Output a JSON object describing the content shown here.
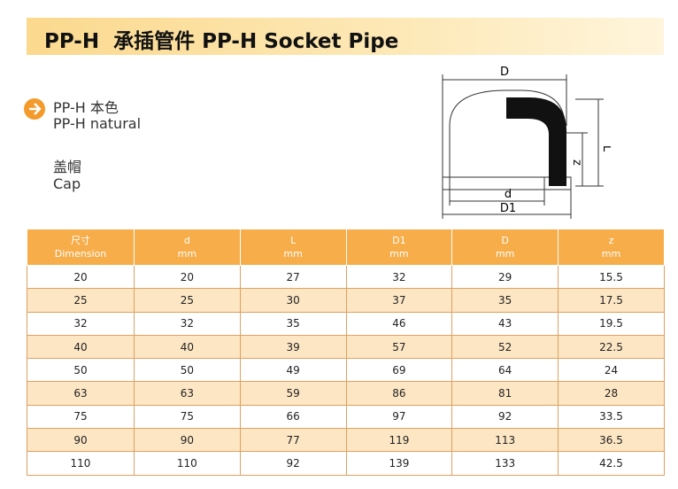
{
  "header": {
    "title": "PP-H  承插管件 PP-H Socket Pipe"
  },
  "product": {
    "material_cn": "PP-H 本色",
    "material_en": "PP-H natural",
    "name_cn": "盖帽",
    "name_en": "Cap"
  },
  "diagram": {
    "labels": [
      "D",
      "L",
      "z",
      "d",
      "D1"
    ]
  },
  "table": {
    "columns": [
      [
        "尺寸",
        "Dimension"
      ],
      [
        "d",
        "mm"
      ],
      [
        "L",
        "mm"
      ],
      [
        "D1",
        "mm"
      ],
      [
        "D",
        "mm"
      ],
      [
        "z",
        "mm"
      ]
    ],
    "rows": [
      [
        20,
        20,
        27,
        32,
        29,
        15.5
      ],
      [
        25,
        25,
        30,
        37,
        35,
        17.5
      ],
      [
        32,
        32,
        35,
        46,
        43,
        19.5
      ],
      [
        40,
        40,
        39,
        57,
        52,
        22.5
      ],
      [
        50,
        50,
        49,
        69,
        64,
        24
      ],
      [
        63,
        63,
        59,
        86,
        81,
        28
      ],
      [
        75,
        75,
        66,
        97,
        92,
        33.5
      ],
      [
        90,
        90,
        77,
        119,
        113,
        36.5
      ],
      [
        110,
        110,
        92,
        139,
        133,
        42.5
      ]
    ]
  }
}
